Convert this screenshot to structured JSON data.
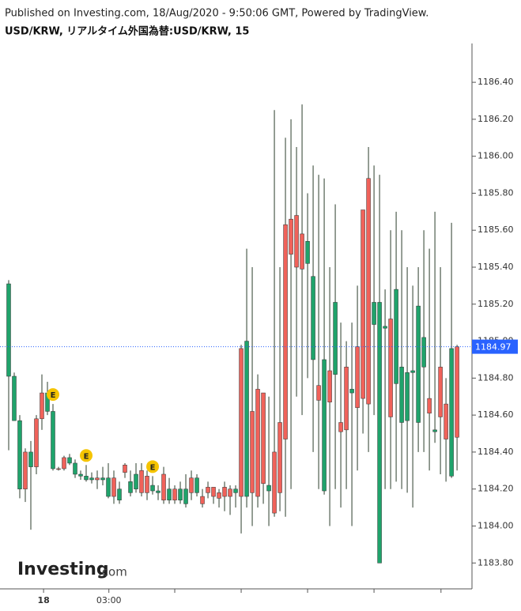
{
  "chart_data": {
    "type": "candlestick",
    "header": "Published on Investing.com, 18/Aug/2020 - 9:50:06 GMT, Powered by TradingView.",
    "title": "USD/KRW, リアルタイム外国為替:USD/KRW, 15",
    "logo": {
      "brand": "Investing",
      "suffix": ".com"
    },
    "up_color": "#f0625a",
    "down_color": "#1fa36b",
    "ylim": [
      1183.66,
      1186.61
    ],
    "yticks": [
      {
        "value": 1183.8,
        "label": "1183.80"
      },
      {
        "value": 1184.0,
        "label": "1184.00"
      },
      {
        "value": 1184.2,
        "label": "1184.20"
      },
      {
        "value": 1184.4,
        "label": "1184.40"
      },
      {
        "value": 1184.6,
        "label": "1184.60"
      },
      {
        "value": 1184.8,
        "label": "1184.80"
      },
      {
        "value": 1185.0,
        "label": "1185.00"
      },
      {
        "value": 1185.2,
        "label": "1185.20"
      },
      {
        "value": 1185.4,
        "label": "1185.40"
      },
      {
        "value": 1185.6,
        "label": "1185.60"
      },
      {
        "value": 1185.8,
        "label": "1185.80"
      },
      {
        "value": 1186.0,
        "label": "1186.00"
      },
      {
        "value": 1186.2,
        "label": "1186.20"
      },
      {
        "value": 1186.4,
        "label": "1186.40"
      }
    ],
    "xlim": [
      -1.57,
      83.7
    ],
    "xticks": [
      {
        "value": 6.3,
        "label": "18"
      },
      {
        "value": 18.1,
        "label": "03:00"
      },
      {
        "value": 30,
        "label": null
      },
      {
        "value": 42,
        "label": null
      },
      {
        "value": 54,
        "label": null
      },
      {
        "value": 66,
        "label": null
      },
      {
        "value": 78.1,
        "label": null
      }
    ],
    "last_price": {
      "value": 1184.97,
      "label": "1184.97"
    },
    "events": [
      {
        "index": 8,
        "label": "E"
      },
      {
        "index": 14,
        "label": "E"
      },
      {
        "index": 26,
        "label": "E"
      }
    ],
    "open": [
      1185.31,
      1184.81,
      1184.57,
      1184.2,
      1184.4,
      1184.32,
      1184.58,
      1184.72,
      1184.62,
      1184.31,
      1184.31,
      1184.37,
      1184.34,
      1184.28,
      1184.27,
      1184.26,
      1184.25,
      1184.26,
      1184.26,
      1184.16,
      1184.2,
      1184.29,
      1184.24,
      1184.28,
      1184.18,
      1184.18,
      1184.22,
      1184.19,
      1184.14,
      1184.2,
      1184.14,
      1184.2,
      1184.2,
      1184.18,
      1184.26,
      1184.12,
      1184.18,
      1184.16,
      1184.15,
      1184.16,
      1184.16,
      1184.2,
      1184.16,
      1185.0,
      1184.18,
      1184.16,
      1184.23,
      1184.22,
      1184.07,
      1184.18,
      1184.47,
      1185.47,
      1185.4,
      1185.39,
      1185.54,
      1185.35,
      1184.68,
      1184.9,
      1184.67,
      1185.21,
      1184.51,
      1184.52,
      1184.74,
      1184.64,
      1184.69,
      1184.66,
      1185.21,
      1185.21,
      1185.08,
      1184.59,
      1185.28,
      1184.86,
      1184.83,
      1184.84,
      1185.19,
      1185.02,
      1184.61,
      1184.52,
      1184.59,
      1184.47,
      1184.96,
      1184.48
    ],
    "high": [
      1185.33,
      1184.83,
      1184.6,
      1184.42,
      1184.46,
      1184.6,
      1184.82,
      1184.78,
      1184.66,
      1184.32,
      1184.38,
      1184.39,
      1184.36,
      1184.3,
      1184.33,
      1184.29,
      1184.3,
      1184.32,
      1184.34,
      1184.3,
      1184.24,
      1184.34,
      1184.3,
      1184.34,
      1184.34,
      1184.3,
      1184.27,
      1184.22,
      1184.32,
      1184.26,
      1184.22,
      1184.24,
      1184.28,
      1184.3,
      1184.28,
      1184.2,
      1184.24,
      1184.2,
      1184.2,
      1184.24,
      1184.22,
      1184.22,
      1184.98,
      1185.5,
      1185.4,
      1184.82,
      1184.72,
      1184.7,
      1186.25,
      1185.4,
      1186.1,
      1186.2,
      1186.05,
      1186.28,
      1185.8,
      1185.95,
      1185.9,
      1185.88,
      1185.4,
      1185.74,
      1185.1,
      1185.0,
      1185.1,
      1185.3,
      1185.7,
      1186.05,
      1185.95,
      1185.9,
      1185.28,
      1185.6,
      1185.7,
      1185.6,
      1185.4,
      1185.3,
      1185.4,
      1185.6,
      1185.5,
      1185.7,
      1185.4,
      1184.8,
      1185.64,
      1184.98
    ],
    "low": [
      1184.41,
      1184.58,
      1184.15,
      1184.13,
      1183.98,
      1184.28,
      1184.52,
      1184.6,
      1184.3,
      1184.3,
      1184.3,
      1184.33,
      1184.26,
      1184.25,
      1184.24,
      1184.23,
      1184.2,
      1184.22,
      1184.15,
      1184.12,
      1184.12,
      1184.26,
      1184.16,
      1184.18,
      1184.16,
      1184.14,
      1184.17,
      1184.14,
      1184.12,
      1184.12,
      1184.12,
      1184.12,
      1184.1,
      1184.14,
      1184.16,
      1184.1,
      1184.15,
      1184.12,
      1184.1,
      1184.08,
      1184.06,
      1184.1,
      1183.96,
      1184.1,
      1184.0,
      1184.1,
      1184.12,
      1184.0,
      1184.05,
      1184.08,
      1184.05,
      1184.2,
      1184.7,
      1184.6,
      1184.8,
      1184.4,
      1184.2,
      1184.17,
      1184.0,
      1184.2,
      1184.1,
      1184.2,
      1184.0,
      1184.3,
      1184.5,
      1184.4,
      1184.6,
      1183.8,
      1184.2,
      1184.2,
      1184.24,
      1184.2,
      1184.18,
      1184.1,
      1184.4,
      1184.4,
      1184.3,
      1184.45,
      1184.28,
      1184.24,
      1184.26,
      1184.3
    ],
    "close": [
      1184.81,
      1184.57,
      1184.2,
      1184.4,
      1184.32,
      1184.58,
      1184.72,
      1184.62,
      1184.31,
      1184.31,
      1184.37,
      1184.34,
      1184.28,
      1184.27,
      1184.25,
      1184.25,
      1184.26,
      1184.25,
      1184.16,
      1184.26,
      1184.14,
      1184.33,
      1184.18,
      1184.2,
      1184.3,
      1184.27,
      1184.19,
      1184.18,
      1184.28,
      1184.14,
      1184.2,
      1184.14,
      1184.12,
      1184.26,
      1184.18,
      1184.16,
      1184.21,
      1184.21,
      1184.18,
      1184.21,
      1184.2,
      1184.18,
      1184.96,
      1184.16,
      1184.62,
      1184.74,
      1184.72,
      1184.19,
      1184.4,
      1184.56,
      1185.63,
      1185.66,
      1185.68,
      1185.58,
      1185.42,
      1184.9,
      1184.76,
      1184.19,
      1184.84,
      1184.82,
      1184.56,
      1184.86,
      1184.72,
      1184.97,
      1185.71,
      1185.88,
      1185.09,
      1183.8,
      1185.07,
      1185.12,
      1184.77,
      1184.56,
      1184.57,
      1184.83,
      1184.56,
      1184.86,
      1184.69,
      1184.51,
      1184.86,
      1184.66,
      1184.27,
      1184.97
    ]
  }
}
